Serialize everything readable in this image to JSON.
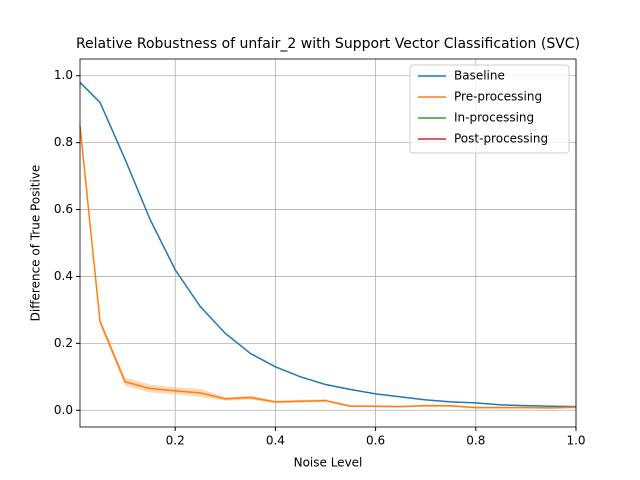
{
  "chart_data": {
    "type": "line",
    "title": "Relative Robustness of unfair_2 with Support Vector Classification (SVC)",
    "xlabel": "Noise Level",
    "ylabel": "Difference of True Positive",
    "x": [
      0.01,
      0.05,
      0.1,
      0.15,
      0.2,
      0.25,
      0.3,
      0.35,
      0.4,
      0.45,
      0.5,
      0.55,
      0.6,
      0.65,
      0.7,
      0.75,
      0.8,
      0.85,
      0.9,
      0.95,
      1.0
    ],
    "series": [
      {
        "name": "Baseline",
        "color": "#1f77b4",
        "values": [
          0.98,
          0.92,
          0.75,
          0.57,
          0.42,
          0.31,
          0.23,
          0.17,
          0.13,
          0.1,
          0.077,
          0.062,
          0.049,
          0.04,
          0.031,
          0.025,
          0.022,
          0.016,
          0.014,
          0.012,
          0.011
        ]
      },
      {
        "name": "Pre-processing",
        "color": "#ff7f0e",
        "values": [
          0.85,
          0.265,
          0.085,
          0.065,
          0.058,
          0.052,
          0.034,
          0.038,
          0.025,
          0.027,
          0.029,
          0.012,
          0.012,
          0.011,
          0.014,
          0.013,
          0.008,
          0.008,
          0.008,
          0.007,
          0.009
        ],
        "error": [
          0.0,
          0.01,
          0.012,
          0.012,
          0.01,
          0.012,
          0.005,
          0.006,
          0.004,
          0.004,
          0.004,
          0.003,
          0.003,
          0.003,
          0.003,
          0.003,
          0.003,
          0.003,
          0.003,
          0.003,
          0.003
        ]
      },
      {
        "name": "In-processing",
        "color": "#2ca02c",
        "values": [
          null,
          null,
          null,
          null,
          null,
          null,
          null,
          null,
          null,
          null,
          null,
          null,
          null,
          null,
          null,
          null,
          null,
          null,
          null,
          null,
          null
        ]
      },
      {
        "name": "Post-processing",
        "color": "#d62728",
        "values": [
          null,
          null,
          null,
          null,
          null,
          null,
          null,
          null,
          null,
          null,
          null,
          null,
          null,
          null,
          null,
          null,
          null,
          null,
          null,
          null,
          null
        ]
      }
    ],
    "xlim": [
      0.01,
      1.0
    ],
    "ylim": [
      -0.05,
      1.05
    ],
    "xticks": [
      0.2,
      0.4,
      0.6,
      0.8,
      {
        "value": 1,
        "label": "1.0"
      }
    ],
    "yticks": [
      {
        "value": 0,
        "label": "0.0"
      },
      0.2,
      0.4,
      0.6,
      0.8,
      {
        "value": 1,
        "label": "1.0"
      }
    ],
    "grid": true,
    "legend": "upper right"
  }
}
